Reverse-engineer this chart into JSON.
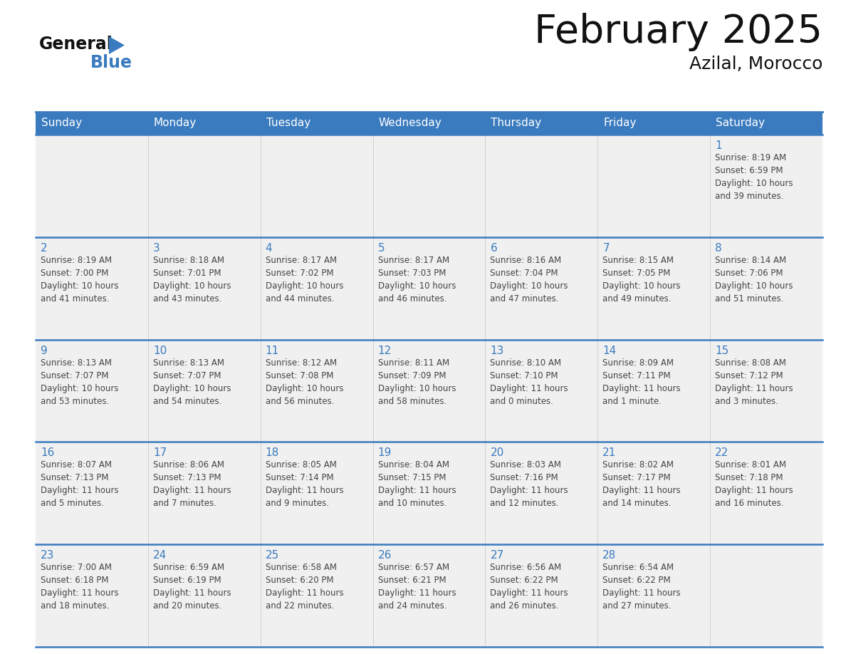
{
  "title": "February 2025",
  "subtitle": "Azilal, Morocco",
  "header_color": "#3a7bbf",
  "header_text_color": "#ffffff",
  "cell_bg_color": "#f0f0f0",
  "day_number_color": "#3a7bbf",
  "text_color": "#444444",
  "line_color": "#3a7bbf",
  "days_of_week": [
    "Sunday",
    "Monday",
    "Tuesday",
    "Wednesday",
    "Thursday",
    "Friday",
    "Saturday"
  ],
  "weeks": [
    [
      {
        "day": null,
        "info": null
      },
      {
        "day": null,
        "info": null
      },
      {
        "day": null,
        "info": null
      },
      {
        "day": null,
        "info": null
      },
      {
        "day": null,
        "info": null
      },
      {
        "day": null,
        "info": null
      },
      {
        "day": 1,
        "info": "Sunrise: 8:19 AM\nSunset: 6:59 PM\nDaylight: 10 hours\nand 39 minutes."
      }
    ],
    [
      {
        "day": 2,
        "info": "Sunrise: 8:19 AM\nSunset: 7:00 PM\nDaylight: 10 hours\nand 41 minutes."
      },
      {
        "day": 3,
        "info": "Sunrise: 8:18 AM\nSunset: 7:01 PM\nDaylight: 10 hours\nand 43 minutes."
      },
      {
        "day": 4,
        "info": "Sunrise: 8:17 AM\nSunset: 7:02 PM\nDaylight: 10 hours\nand 44 minutes."
      },
      {
        "day": 5,
        "info": "Sunrise: 8:17 AM\nSunset: 7:03 PM\nDaylight: 10 hours\nand 46 minutes."
      },
      {
        "day": 6,
        "info": "Sunrise: 8:16 AM\nSunset: 7:04 PM\nDaylight: 10 hours\nand 47 minutes."
      },
      {
        "day": 7,
        "info": "Sunrise: 8:15 AM\nSunset: 7:05 PM\nDaylight: 10 hours\nand 49 minutes."
      },
      {
        "day": 8,
        "info": "Sunrise: 8:14 AM\nSunset: 7:06 PM\nDaylight: 10 hours\nand 51 minutes."
      }
    ],
    [
      {
        "day": 9,
        "info": "Sunrise: 8:13 AM\nSunset: 7:07 PM\nDaylight: 10 hours\nand 53 minutes."
      },
      {
        "day": 10,
        "info": "Sunrise: 8:13 AM\nSunset: 7:07 PM\nDaylight: 10 hours\nand 54 minutes."
      },
      {
        "day": 11,
        "info": "Sunrise: 8:12 AM\nSunset: 7:08 PM\nDaylight: 10 hours\nand 56 minutes."
      },
      {
        "day": 12,
        "info": "Sunrise: 8:11 AM\nSunset: 7:09 PM\nDaylight: 10 hours\nand 58 minutes."
      },
      {
        "day": 13,
        "info": "Sunrise: 8:10 AM\nSunset: 7:10 PM\nDaylight: 11 hours\nand 0 minutes."
      },
      {
        "day": 14,
        "info": "Sunrise: 8:09 AM\nSunset: 7:11 PM\nDaylight: 11 hours\nand 1 minute."
      },
      {
        "day": 15,
        "info": "Sunrise: 8:08 AM\nSunset: 7:12 PM\nDaylight: 11 hours\nand 3 minutes."
      }
    ],
    [
      {
        "day": 16,
        "info": "Sunrise: 8:07 AM\nSunset: 7:13 PM\nDaylight: 11 hours\nand 5 minutes."
      },
      {
        "day": 17,
        "info": "Sunrise: 8:06 AM\nSunset: 7:13 PM\nDaylight: 11 hours\nand 7 minutes."
      },
      {
        "day": 18,
        "info": "Sunrise: 8:05 AM\nSunset: 7:14 PM\nDaylight: 11 hours\nand 9 minutes."
      },
      {
        "day": 19,
        "info": "Sunrise: 8:04 AM\nSunset: 7:15 PM\nDaylight: 11 hours\nand 10 minutes."
      },
      {
        "day": 20,
        "info": "Sunrise: 8:03 AM\nSunset: 7:16 PM\nDaylight: 11 hours\nand 12 minutes."
      },
      {
        "day": 21,
        "info": "Sunrise: 8:02 AM\nSunset: 7:17 PM\nDaylight: 11 hours\nand 14 minutes."
      },
      {
        "day": 22,
        "info": "Sunrise: 8:01 AM\nSunset: 7:18 PM\nDaylight: 11 hours\nand 16 minutes."
      }
    ],
    [
      {
        "day": 23,
        "info": "Sunrise: 7:00 AM\nSunset: 6:18 PM\nDaylight: 11 hours\nand 18 minutes."
      },
      {
        "day": 24,
        "info": "Sunrise: 6:59 AM\nSunset: 6:19 PM\nDaylight: 11 hours\nand 20 minutes."
      },
      {
        "day": 25,
        "info": "Sunrise: 6:58 AM\nSunset: 6:20 PM\nDaylight: 11 hours\nand 22 minutes."
      },
      {
        "day": 26,
        "info": "Sunrise: 6:57 AM\nSunset: 6:21 PM\nDaylight: 11 hours\nand 24 minutes."
      },
      {
        "day": 27,
        "info": "Sunrise: 6:56 AM\nSunset: 6:22 PM\nDaylight: 11 hours\nand 26 minutes."
      },
      {
        "day": 28,
        "info": "Sunrise: 6:54 AM\nSunset: 6:22 PM\nDaylight: 11 hours\nand 27 minutes."
      },
      {
        "day": null,
        "info": null
      }
    ]
  ],
  "logo_general_color": "#111111",
  "logo_blue_color": "#3a7bbf",
  "logo_triangle_color": "#3a7bbf"
}
